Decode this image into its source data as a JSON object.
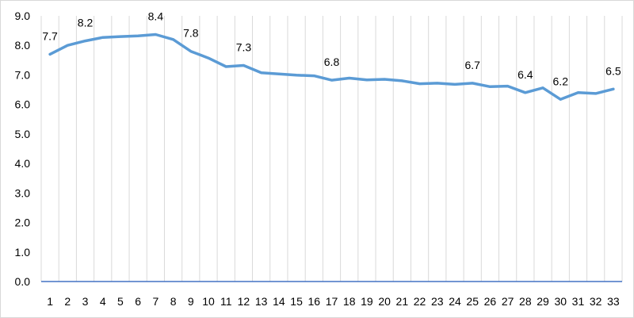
{
  "chart_data": {
    "type": "line",
    "x": [
      1,
      2,
      3,
      4,
      5,
      6,
      7,
      8,
      9,
      10,
      11,
      12,
      13,
      14,
      15,
      16,
      17,
      18,
      19,
      20,
      21,
      22,
      23,
      24,
      25,
      26,
      27,
      28,
      29,
      30,
      31,
      32,
      33
    ],
    "series": [
      {
        "values": [
          7.7,
          8.0,
          8.15,
          8.27,
          8.3,
          8.32,
          8.37,
          8.2,
          7.8,
          7.57,
          7.28,
          7.32,
          7.07,
          7.03,
          6.99,
          6.97,
          6.82,
          6.89,
          6.83,
          6.85,
          6.8,
          6.7,
          6.72,
          6.68,
          6.72,
          6.6,
          6.62,
          6.4,
          6.56,
          6.17,
          6.4,
          6.37,
          6.52
        ],
        "color": "#5b9bd5"
      }
    ],
    "data_labels": [
      {
        "x": 1,
        "text": "7.7"
      },
      {
        "x": 3,
        "text": "8.2"
      },
      {
        "x": 7,
        "text": "8.4"
      },
      {
        "x": 9,
        "text": "7.8"
      },
      {
        "x": 12,
        "text": "7.3"
      },
      {
        "x": 17,
        "text": "6.8"
      },
      {
        "x": 25,
        "text": "6.7"
      },
      {
        "x": 28,
        "text": "6.4"
      },
      {
        "x": 30,
        "text": "6.2"
      },
      {
        "x": 33,
        "text": "6.5"
      }
    ],
    "ylim": [
      0,
      9
    ],
    "yticks": [
      "0.0",
      "1.0",
      "2.0",
      "3.0",
      "4.0",
      "5.0",
      "6.0",
      "7.0",
      "8.0",
      "9.0"
    ],
    "grid": "vertical",
    "axis_color": "#4472c4",
    "grid_color": "#d9d9d9"
  }
}
